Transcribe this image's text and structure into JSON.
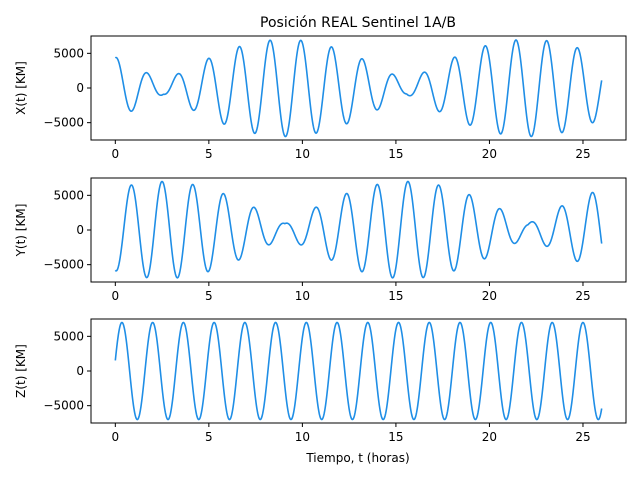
{
  "title": "Posición REAL Sentinel 1A/B",
  "xlabel": "Tiempo, t (horas)",
  "colors": {
    "line": "#1f8ee6"
  },
  "chart_data": [
    {
      "type": "line",
      "ylabel": "X(t) [KM]",
      "xlim": [
        -1.3,
        27.3
      ],
      "ylim": [
        -7500,
        7500
      ],
      "xticks": [
        0,
        5,
        10,
        15,
        20,
        25
      ],
      "yticks": [
        -5000,
        0,
        5000
      ],
      "series": [
        {
          "model": {
            "amplitude": 7000,
            "period_h": 1.643,
            "phase_rad": 1.35,
            "envelope_period_h": 13.0,
            "envelope_phase_rad": 0.95,
            "envelope_floor": 0.13
          },
          "x_range": [
            0,
            26
          ]
        }
      ]
    },
    {
      "type": "line",
      "ylabel": "Y(t) [KM]",
      "xlim": [
        -1.3,
        27.3
      ],
      "ylim": [
        -7500,
        7500
      ],
      "xticks": [
        0,
        5,
        10,
        15,
        20,
        25
      ],
      "yticks": [
        -5000,
        0,
        5000
      ],
      "series": [
        {
          "model": {
            "amplitude": 7000,
            "period_h": 1.643,
            "phase_rad": -1.7,
            "envelope_period_h": 13.0,
            "envelope_phase_rad": -0.62,
            "envelope_floor": 0.13
          },
          "x_range": [
            0,
            26
          ]
        }
      ]
    },
    {
      "type": "line",
      "ylabel": "Z(t) [KM]",
      "xlim": [
        -1.3,
        27.3
      ],
      "ylim": [
        -7500,
        7500
      ],
      "xticks": [
        0,
        5,
        10,
        15,
        20,
        25
      ],
      "yticks": [
        -5000,
        0,
        5000
      ],
      "series": [
        {
          "model": {
            "amplitude": 7000,
            "period_h": 1.643,
            "phase_rad": 0.22,
            "envelope_period_h": 0,
            "envelope_phase_rad": 0,
            "envelope_floor": 1
          },
          "x_range": [
            0,
            26
          ]
        }
      ]
    }
  ]
}
